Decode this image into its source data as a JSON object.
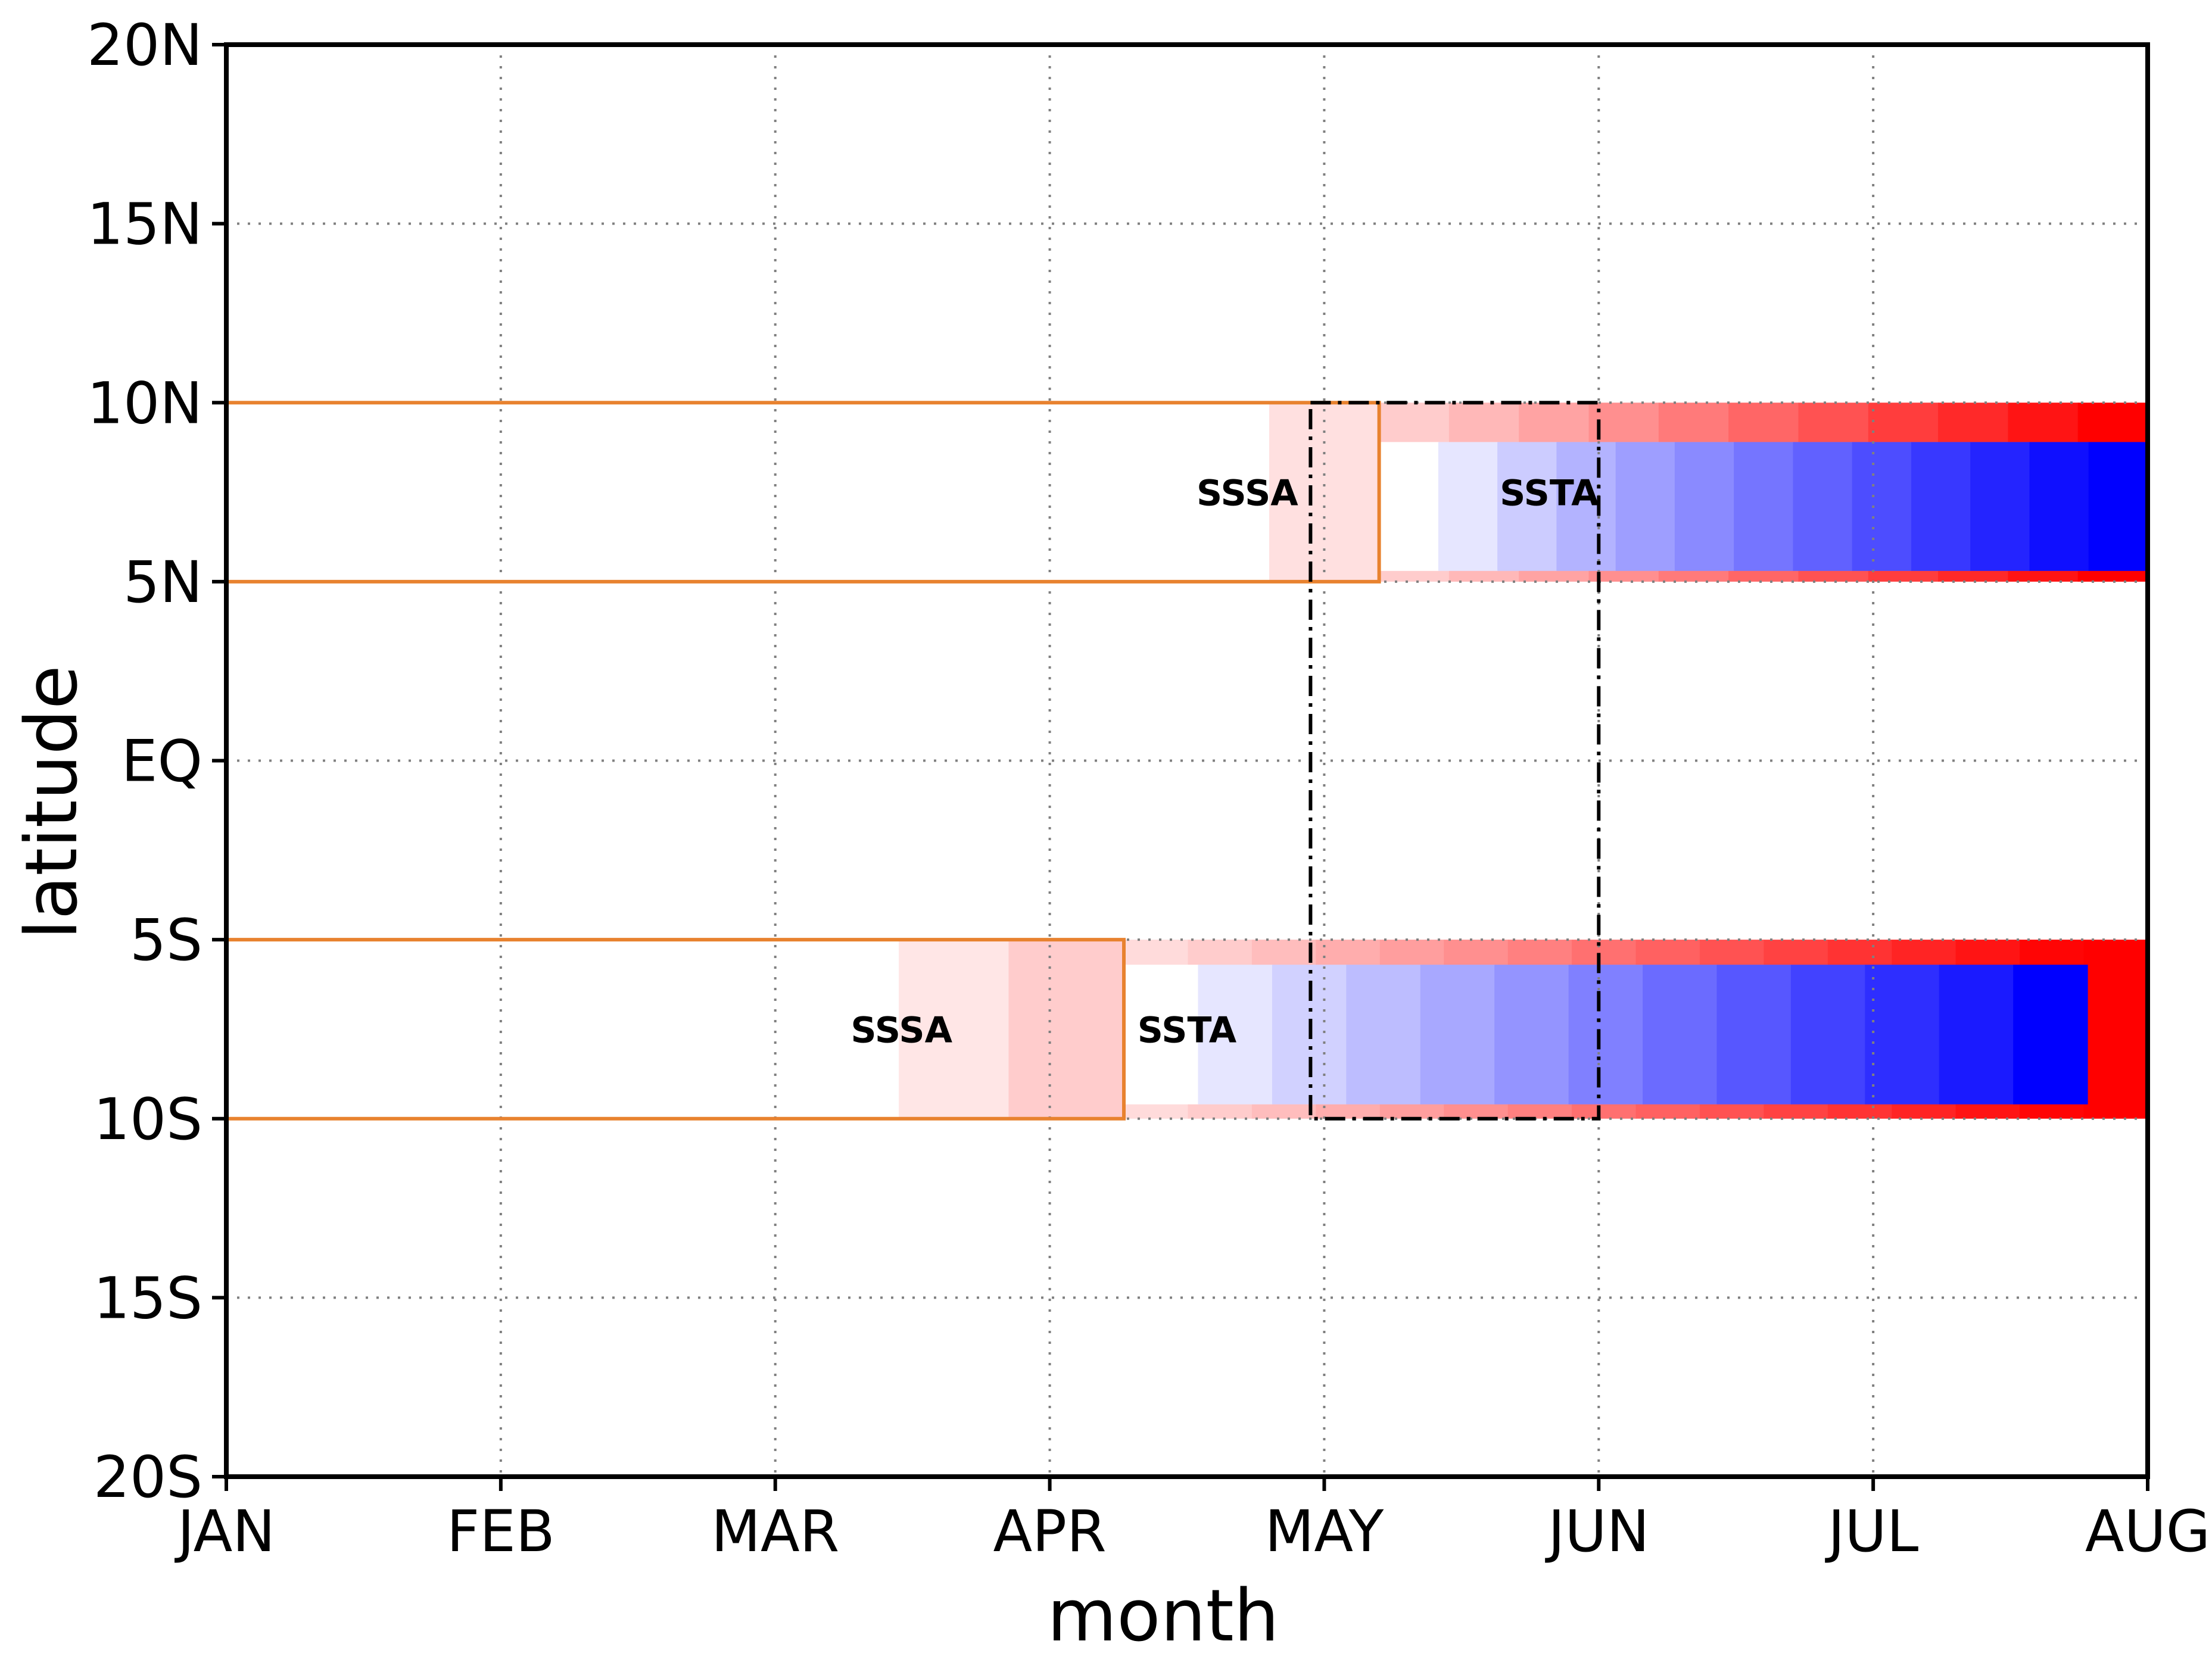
{
  "chart_data": {
    "type": "heatmap",
    "title": "",
    "xlabel": "month",
    "ylabel": "latitude",
    "x_tick_labels": [
      "JAN",
      "FEB",
      "MAR",
      "APR",
      "MAY",
      "JUN",
      "JUL",
      "AUG"
    ],
    "y_tick_labels": [
      "20N",
      "15N",
      "10N",
      "5N",
      "EQ",
      "5S",
      "10S",
      "15S",
      "20S"
    ],
    "xlim_months": [
      0,
      7
    ],
    "ylim_lat": [
      -20,
      20
    ],
    "grid": true,
    "grid_style": "dotted",
    "colors": {
      "warm_max": "#ff0000",
      "cool_max": "#0000ff",
      "box_outline": "#e8822f",
      "frame": "#000000"
    },
    "regions": [
      {
        "name": "north",
        "lat_range": [
          5,
          10
        ],
        "sssa": {
          "label": "SSSA",
          "months": [
            3.8,
            4.2
          ],
          "values": [
            0.12,
            0.25
          ]
        },
        "ssta": {
          "label": "SSTA",
          "start_month": 4.2,
          "end_month": 7.0,
          "inner_lat_range": [
            5.3,
            8.9
          ],
          "outline_values": [
            0.2,
            0.28,
            0.36,
            0.44,
            0.52,
            0.6,
            0.68,
            0.76,
            0.84,
            0.92,
            1.0
          ],
          "inner_values": [
            0.0,
            0.1,
            0.2,
            0.3,
            0.38,
            0.46,
            0.54,
            0.62,
            0.7,
            0.78,
            0.86,
            0.94,
            1.0
          ]
        },
        "orange_box_months": [
          0,
          4.2
        ]
      },
      {
        "name": "south",
        "lat_range": [
          -10,
          -5
        ],
        "sssa": {
          "label": "SSSA",
          "months": [
            2.45,
            2.85,
            3.27
          ],
          "values": [
            0.0,
            0.1,
            0.2
          ]
        },
        "ssta": {
          "label": "SSTA",
          "start_month": 3.27,
          "end_month": 7.0,
          "inner_lat_range": [
            -9.6,
            -5.7
          ],
          "inner_end_month": 6.78,
          "outline_values": [
            0.14,
            0.2,
            0.26,
            0.32,
            0.38,
            0.44,
            0.5,
            0.56,
            0.62,
            0.68,
            0.74,
            0.8,
            0.86,
            0.92,
            0.98,
            1.0
          ],
          "inner_values": [
            0.0,
            0.1,
            0.18,
            0.26,
            0.34,
            0.42,
            0.5,
            0.58,
            0.66,
            0.74,
            0.82,
            0.9,
            1.0
          ]
        },
        "orange_box_months": [
          0,
          3.27
        ]
      }
    ],
    "dashdot_box": {
      "months": [
        3.95,
        5.0
      ],
      "lat_range": [
        -10,
        10
      ]
    }
  }
}
